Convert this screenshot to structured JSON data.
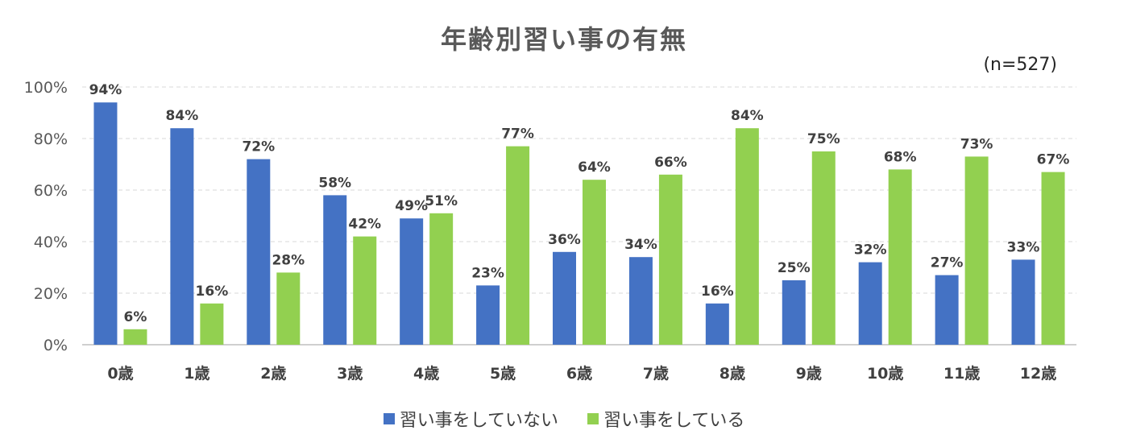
{
  "chart_data": {
    "type": "bar",
    "title": "年齢別習い事の有無",
    "note": "(n=527)",
    "categories": [
      "0歳",
      "1歳",
      "2歳",
      "3歳",
      "4歳",
      "5歳",
      "6歳",
      "7歳",
      "8歳",
      "9歳",
      "10歳",
      "11歳",
      "12歳"
    ],
    "series": [
      {
        "name": "習い事をしていない",
        "color": "#4472C4",
        "values": [
          94,
          84,
          72,
          58,
          49,
          23,
          36,
          34,
          16,
          25,
          32,
          27,
          33
        ]
      },
      {
        "name": "習い事をしている",
        "color": "#92D050",
        "values": [
          6,
          16,
          28,
          42,
          51,
          77,
          64,
          66,
          84,
          75,
          68,
          73,
          67
        ]
      }
    ],
    "ylim": [
      0,
      100
    ],
    "yticks": [
      "0%",
      "20%",
      "40%",
      "60%",
      "80%",
      "100%"
    ],
    "value_suffix": "%",
    "grid": true,
    "legend_position": "bottom"
  }
}
